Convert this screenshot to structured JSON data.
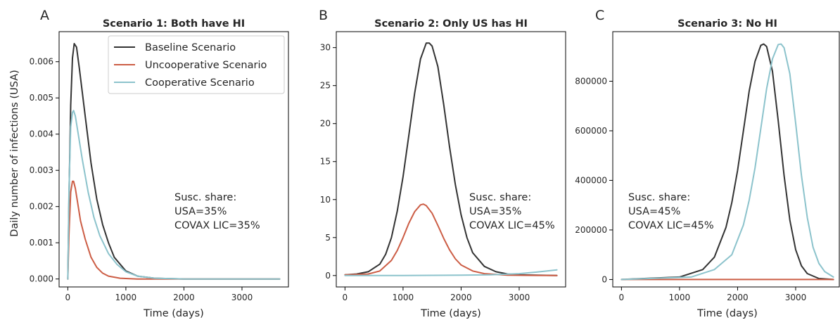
{
  "figure": {
    "ylabel": "Daily number of infections (USA)",
    "xlabel": "Time (days)"
  },
  "legend": {
    "entries": [
      {
        "label": "Baseline Scenario",
        "color": "#333333"
      },
      {
        "label": "Uncooperative Scenario",
        "color": "#cc5d45"
      },
      {
        "label": "Cooperative Scenario",
        "color": "#8cc3cc"
      }
    ]
  },
  "chart_data": [
    {
      "type": "line",
      "panel_label": "A",
      "title": "Scenario 1: Both have HI",
      "xlabel": "Time (days)",
      "ylabel": "Daily number of infections (USA)",
      "xlim": [
        -150,
        3800
      ],
      "ylim": [
        -0.00022,
        0.00683
      ],
      "xticks": [
        0,
        1000,
        2000,
        3000
      ],
      "yticks": [
        0,
        0.001,
        0.002,
        0.003,
        0.004,
        0.005,
        0.006
      ],
      "ytick_labels": [
        "0.000",
        "0.001",
        "0.002",
        "0.003",
        "0.004",
        "0.005",
        "0.006"
      ],
      "annotation": [
        "Susc. share:",
        "USA=35%",
        "COVAX LIC=35%"
      ],
      "series": [
        {
          "name": "Baseline Scenario",
          "color": "#333333",
          "x": [
            0,
            20,
            50,
            80,
            110,
            150,
            200,
            300,
            400,
            500,
            600,
            700,
            800,
            1000,
            1200,
            1500,
            2000,
            2500,
            3000,
            3650
          ],
          "values": [
            0,
            0.0022,
            0.0048,
            0.0061,
            0.0065,
            0.0064,
            0.0058,
            0.0045,
            0.0032,
            0.0022,
            0.0015,
            0.001,
            0.0006,
            0.00022,
            8e-05,
            2e-05,
            0,
            0,
            0,
            0
          ]
        },
        {
          "name": "Uncooperative Scenario",
          "color": "#cc5d45",
          "x": [
            0,
            20,
            50,
            80,
            100,
            130,
            170,
            220,
            300,
            400,
            500,
            600,
            700,
            900,
            1200,
            2000,
            3650
          ],
          "values": [
            0,
            0.0012,
            0.0024,
            0.0027,
            0.0027,
            0.0025,
            0.0021,
            0.0016,
            0.0011,
            0.0006,
            0.00032,
            0.00016,
            8e-05,
            2e-05,
            0,
            0,
            0
          ]
        },
        {
          "name": "Cooperative Scenario",
          "color": "#8cc3cc",
          "x": [
            0,
            20,
            50,
            80,
            100,
            130,
            170,
            250,
            350,
            450,
            550,
            700,
            850,
            1000,
            1200,
            1500,
            2000,
            3650
          ],
          "values": [
            0,
            0.0024,
            0.0042,
            0.0046,
            0.00465,
            0.0045,
            0.0041,
            0.0033,
            0.0024,
            0.0017,
            0.0012,
            0.0007,
            0.0004,
            0.0002,
            8e-05,
            2e-05,
            0,
            0
          ]
        }
      ]
    },
    {
      "type": "line",
      "panel_label": "B",
      "title": "Scenario 2: Only US has HI",
      "xlabel": "Time (days)",
      "xlim": [
        -150,
        3800
      ],
      "ylim": [
        -1.5,
        32.1
      ],
      "xticks": [
        0,
        1000,
        2000,
        3000
      ],
      "yticks": [
        0,
        5,
        10,
        15,
        20,
        25,
        30
      ],
      "ytick_labels": [
        "0",
        "5",
        "10",
        "15",
        "20",
        "25",
        "30"
      ],
      "annotation": [
        "Susc. share:",
        "USA=35%",
        "COVAX LIC=45%"
      ],
      "series": [
        {
          "name": "Baseline Scenario",
          "color": "#333333",
          "x": [
            0,
            200,
            400,
            600,
            700,
            800,
            900,
            1000,
            1100,
            1200,
            1300,
            1400,
            1450,
            1500,
            1600,
            1700,
            1800,
            1900,
            2000,
            2100,
            2200,
            2400,
            2600,
            2800,
            3000,
            3650
          ],
          "values": [
            0.1,
            0.2,
            0.5,
            1.5,
            2.8,
            5,
            8.5,
            13,
            18.5,
            24,
            28.5,
            30.6,
            30.6,
            30.2,
            27.5,
            22.5,
            17,
            12,
            8,
            5,
            3,
            1.2,
            0.5,
            0.2,
            0.1,
            0
          ]
        },
        {
          "name": "Uncooperative Scenario",
          "color": "#cc5d45",
          "x": [
            0,
            400,
            600,
            800,
            900,
            1000,
            1100,
            1200,
            1300,
            1350,
            1400,
            1500,
            1600,
            1700,
            1800,
            1900,
            2000,
            2200,
            2400,
            2800,
            3650
          ],
          "values": [
            0.1,
            0.2,
            0.6,
            2,
            3.3,
            5,
            6.9,
            8.4,
            9.3,
            9.4,
            9.2,
            8.2,
            6.6,
            4.9,
            3.4,
            2.2,
            1.4,
            0.6,
            0.25,
            0.05,
            0
          ]
        },
        {
          "name": "Cooperative Scenario",
          "color": "#8cc3cc",
          "x": [
            0,
            1000,
            2000,
            2500,
            3000,
            3300,
            3650
          ],
          "values": [
            0,
            0,
            0.05,
            0.1,
            0.25,
            0.45,
            0.75
          ]
        }
      ]
    },
    {
      "type": "line",
      "panel_label": "C",
      "title": "Scenario 3: No HI",
      "xlabel": "Time (days)",
      "xlim": [
        -150,
        3800
      ],
      "ylim": [
        -30000,
        1000000
      ],
      "xticks": [
        0,
        1000,
        2000,
        3000
      ],
      "yticks": [
        0,
        200000,
        400000,
        600000,
        800000
      ],
      "ytick_labels": [
        "0",
        "200000",
        "400000",
        "600000",
        "800000"
      ],
      "annotation": [
        "Susc. share:",
        "USA=45%",
        "COVAX LIC=45%"
      ],
      "series": [
        {
          "name": "Baseline Scenario",
          "color": "#333333",
          "x": [
            0,
            1000,
            1400,
            1600,
            1800,
            1900,
            2000,
            2100,
            2200,
            2300,
            2400,
            2450,
            2500,
            2600,
            2700,
            2800,
            2900,
            3000,
            3100,
            3200,
            3400,
            3650
          ],
          "values": [
            0,
            10000,
            40000,
            90000,
            210000,
            310000,
            440000,
            600000,
            760000,
            880000,
            945000,
            950000,
            940000,
            840000,
            640000,
            420000,
            240000,
            120000,
            55000,
            24000,
            4000,
            0
          ]
        },
        {
          "name": "Uncooperative Scenario",
          "color": "#cc5d45",
          "x": [
            0,
            3650
          ],
          "values": [
            0,
            0
          ]
        },
        {
          "name": "Cooperative Scenario",
          "color": "#8cc3cc",
          "x": [
            0,
            1200,
            1600,
            1900,
            2100,
            2200,
            2300,
            2400,
            2500,
            2600,
            2700,
            2750,
            2800,
            2900,
            3000,
            3100,
            3200,
            3300,
            3400,
            3500,
            3650
          ],
          "values": [
            0,
            10000,
            40000,
            100000,
            220000,
            320000,
            450000,
            610000,
            770000,
            890000,
            948000,
            950000,
            935000,
            830000,
            630000,
            420000,
            250000,
            130000,
            65000,
            32000,
            10000
          ]
        }
      ]
    }
  ]
}
